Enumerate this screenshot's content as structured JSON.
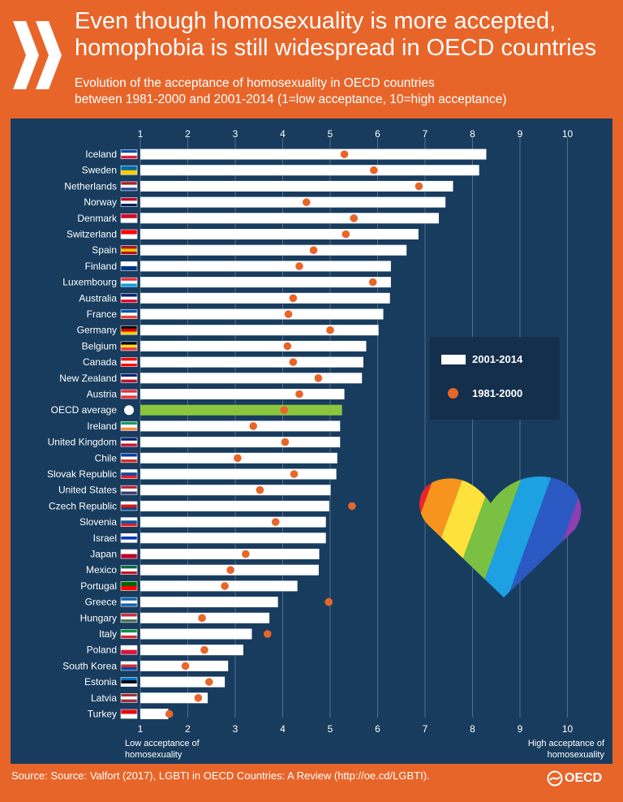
{
  "header": {
    "title_line1": "Even though homosexuality is more accepted,",
    "title_line2": "homophobia is still widespread in OECD countries",
    "subtitle_line1": "Evolution of the acceptance of homosexuality in OECD countries",
    "subtitle_line2": "between 1981-2000 and 2001-2014 (1=low acceptance, 10=high acceptance)"
  },
  "legend": {
    "series1": "2001-2014",
    "series2": "1981-2000"
  },
  "axis_notes": {
    "low_line1": "Low acceptance of",
    "low_line2": "homosexuality",
    "high_line1": "High acceptance of",
    "high_line2": "homosexuality"
  },
  "footer": {
    "source": "Source: Source: Valfort (2017), LGBTI in OECD Countries: A Review (http://oe.cd/LGBTI).",
    "logo_text": "OECD"
  },
  "colors": {
    "background": "#e8652a",
    "panel": "#183c5e",
    "bar": "#ffffff",
    "highlight_bar": "#8cc63f",
    "dot": "#e8652a"
  },
  "chart_data": {
    "type": "bar",
    "orientation": "horizontal",
    "title": "Even though homosexuality is more accepted, homophobia is still widespread in OECD countries",
    "xlabel": "1=low acceptance, 10=high acceptance",
    "xlim": [
      1,
      10
    ],
    "xticks": [
      1,
      2,
      3,
      4,
      5,
      6,
      7,
      8,
      9,
      10
    ],
    "highlight": "OECD average",
    "categories": [
      "Iceland",
      "Sweden",
      "Netherlands",
      "Norway",
      "Denmark",
      "Switzerland",
      "Spain",
      "Finland",
      "Luxembourg",
      "Australia",
      "France",
      "Germany",
      "Belgium",
      "Canada",
      "New Zealand",
      "Austria",
      "OECD average",
      "Ireland",
      "United Kingdom",
      "Chile",
      "Slovak Republic",
      "United States",
      "Czech Republic",
      "Slovenia",
      "Israel",
      "Japan",
      "Mexico",
      "Portugal",
      "Greece",
      "Hungary",
      "Italy",
      "Poland",
      "South Korea",
      "Estonia",
      "Latvia",
      "Turkey"
    ],
    "series": [
      {
        "name": "2001-2014",
        "mark": "bar",
        "values": [
          8.29,
          8.14,
          7.59,
          7.43,
          7.29,
          6.86,
          6.61,
          6.28,
          6.28,
          6.26,
          6.12,
          6.02,
          5.76,
          5.7,
          5.67,
          5.3,
          5.25,
          5.21,
          5.21,
          5.15,
          5.13,
          5.01,
          4.98,
          4.91,
          4.91,
          4.77,
          4.76,
          4.31,
          3.9,
          3.72,
          3.35,
          3.17,
          2.85,
          2.78,
          2.42,
          1.59
        ]
      },
      {
        "name": "1981-2000",
        "mark": "dot",
        "values": [
          5.3,
          5.92,
          6.87,
          4.5,
          5.5,
          5.33,
          4.65,
          4.35,
          5.9,
          4.22,
          4.12,
          5.0,
          4.1,
          4.22,
          4.75,
          4.35,
          4.03,
          3.38,
          4.05,
          3.05,
          4.24,
          3.52,
          5.46,
          3.85,
          null,
          3.22,
          2.9,
          2.78,
          4.97,
          2.3,
          3.68,
          2.35,
          1.95,
          2.45,
          2.22,
          1.61
        ]
      }
    ]
  }
}
